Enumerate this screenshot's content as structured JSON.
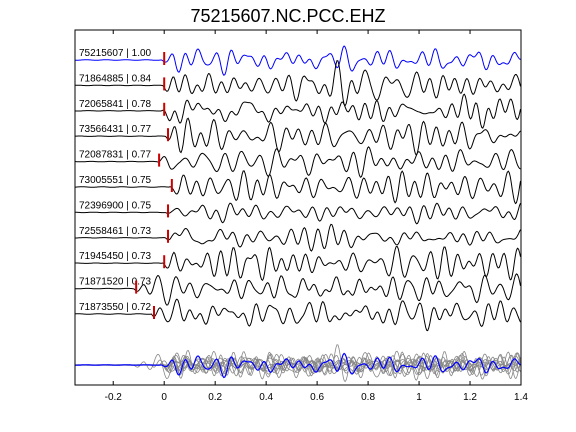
{
  "chart_data": {
    "type": "line",
    "title": "75215607.NC.PCC.EHZ",
    "xlabel": "",
    "ylabel": "",
    "xlim": [
      -0.35,
      1.4
    ],
    "xticks": [
      -0.2,
      0,
      0.2,
      0.4,
      0.6,
      0.8,
      1,
      1.2,
      1.4
    ],
    "xtick_labels": [
      "-0.2",
      "0",
      "0.2",
      "0.4",
      "0.6",
      "0.8",
      "1",
      "1.2",
      "1.4"
    ],
    "grid": false,
    "traces": [
      {
        "label": "75215607 | 1.00",
        "pick_time": 0.0,
        "color": "#0000ff"
      },
      {
        "label": "71864885 | 0.84",
        "pick_time": 0.0,
        "color": "#000000"
      },
      {
        "label": "72065841 | 0.78",
        "pick_time": 0.0,
        "color": "#000000"
      },
      {
        "label": "73566431 | 0.77",
        "pick_time": 0.015,
        "color": "#000000"
      },
      {
        "label": "72087831 | 0.77",
        "pick_time": -0.02,
        "color": "#000000"
      },
      {
        "label": "73005551 | 0.75",
        "pick_time": 0.03,
        "color": "#000000"
      },
      {
        "label": "72396900 | 0.75",
        "pick_time": 0.015,
        "color": "#000000"
      },
      {
        "label": "72558461 | 0.73",
        "pick_time": 0.015,
        "color": "#000000"
      },
      {
        "label": "71945450 | 0.73",
        "pick_time": 0.0,
        "color": "#000000"
      },
      {
        "label": "71871520 | 0.73",
        "pick_time": -0.11,
        "color": "#000000"
      },
      {
        "label": "71873550 | 0.72",
        "pick_time": -0.04,
        "color": "#000000"
      }
    ],
    "pick_color": "#cc0000",
    "stack_colors": [
      "#888888",
      "#0000ff"
    ]
  }
}
